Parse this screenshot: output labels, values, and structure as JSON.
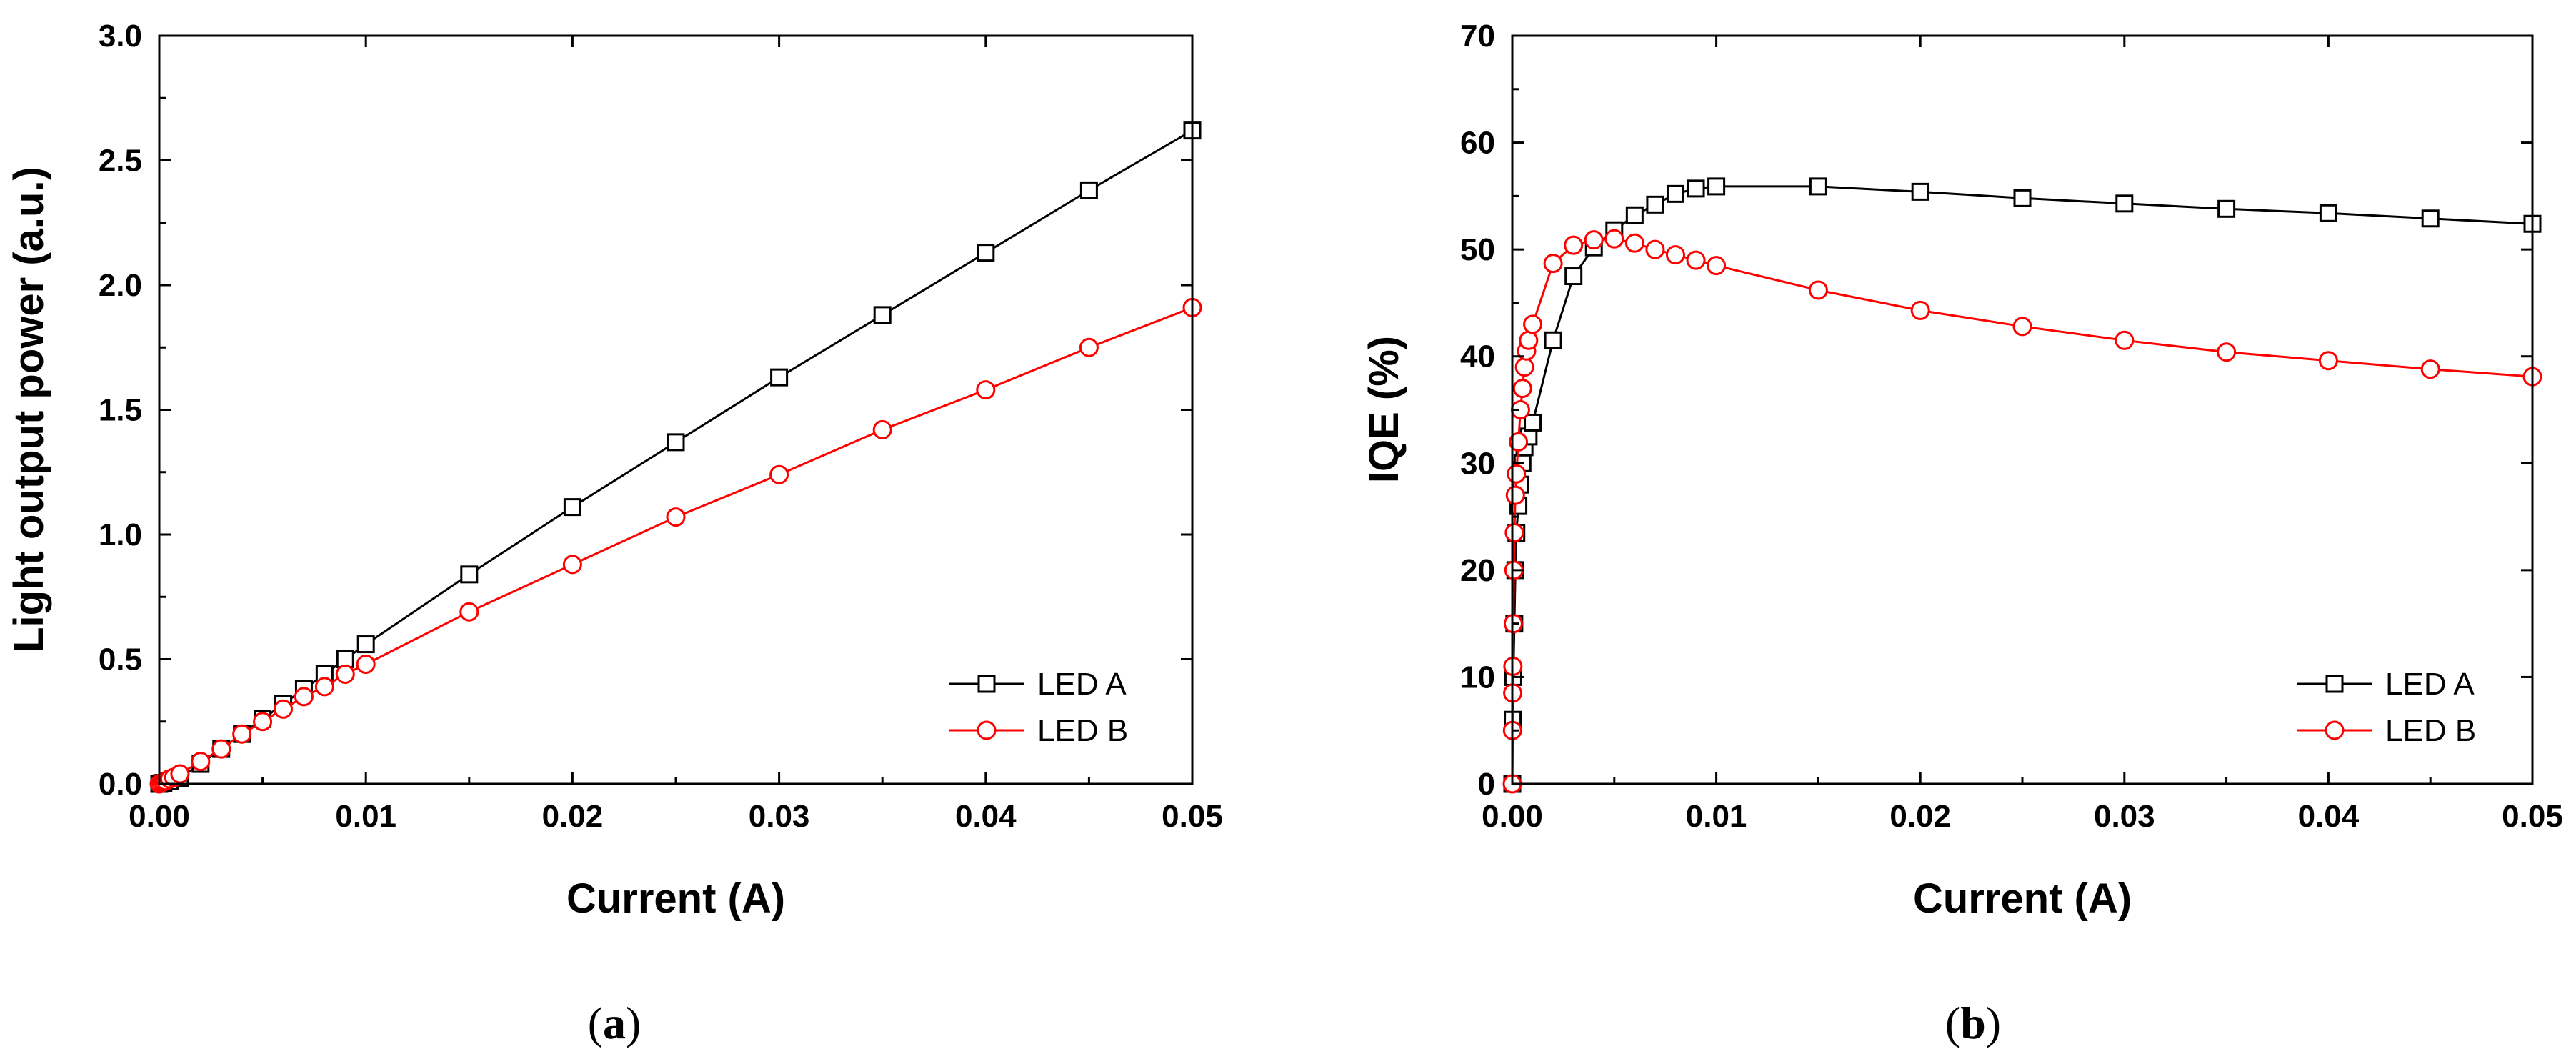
{
  "chart_data": [
    {
      "type": "line",
      "panel_label": {
        "open": "(",
        "letter": "a",
        "close": ")"
      },
      "title": "",
      "xlabel": "Current (A)",
      "ylabel": "Light output power (a.u.)",
      "xlim": [
        0,
        0.05
      ],
      "ylim": [
        0,
        3.0
      ],
      "xticks": [
        0.0,
        0.01,
        0.02,
        0.03,
        0.04,
        0.05
      ],
      "xtick_labels": [
        "0.00",
        "0.01",
        "0.02",
        "0.03",
        "0.04",
        "0.05"
      ],
      "yticks": [
        0,
        0.5,
        1.0,
        1.5,
        2.0,
        2.5,
        3.0
      ],
      "ytick_labels": [
        "0.0",
        "0.5",
        "1.0",
        "1.5",
        "2.0",
        "2.5",
        "3.0"
      ],
      "grid": false,
      "legend_position": "bottom-right",
      "series": [
        {
          "name": "LED A",
          "color": "#000000",
          "marker": "square",
          "x": [
            0,
            0.0001,
            0.0002,
            0.0005,
            0.001,
            0.002,
            0.003,
            0.004,
            0.005,
            0.006,
            0.007,
            0.008,
            0.009,
            0.01,
            0.015,
            0.02,
            0.025,
            0.03,
            0.035,
            0.04,
            0.045,
            0.05
          ],
          "y": [
            0,
            0.002,
            0.004,
            0.01,
            0.024,
            0.08,
            0.14,
            0.2,
            0.26,
            0.32,
            0.38,
            0.44,
            0.5,
            0.56,
            0.84,
            1.11,
            1.37,
            1.63,
            1.88,
            2.13,
            2.38,
            2.62
          ]
        },
        {
          "name": "LED B",
          "color": "#ff0000",
          "marker": "circle",
          "x": [
            0,
            0.0001,
            0.0002,
            0.0003,
            0.0005,
            0.0007,
            0.001,
            0.002,
            0.003,
            0.004,
            0.005,
            0.006,
            0.007,
            0.008,
            0.009,
            0.01,
            0.015,
            0.02,
            0.025,
            0.03,
            0.035,
            0.04,
            0.045,
            0.05
          ],
          "y": [
            0,
            0.004,
            0.008,
            0.012,
            0.02,
            0.026,
            0.04,
            0.09,
            0.14,
            0.2,
            0.25,
            0.3,
            0.35,
            0.39,
            0.44,
            0.48,
            0.69,
            0.88,
            1.07,
            1.24,
            1.42,
            1.58,
            1.75,
            1.91
          ]
        }
      ]
    },
    {
      "type": "line",
      "panel_label": {
        "open": "(",
        "letter": "b",
        "close": ")"
      },
      "title": "",
      "xlabel": "Current (A)",
      "ylabel": "IQE (%)",
      "xlim": [
        0,
        0.05
      ],
      "ylim": [
        0,
        70
      ],
      "xticks": [
        0.0,
        0.01,
        0.02,
        0.03,
        0.04,
        0.05
      ],
      "xtick_labels": [
        "0.00",
        "0.01",
        "0.02",
        "0.03",
        "0.04",
        "0.05"
      ],
      "yticks": [
        0,
        10,
        20,
        30,
        40,
        50,
        60,
        70
      ],
      "ytick_labels": [
        "0",
        "10",
        "20",
        "30",
        "40",
        "50",
        "60",
        "70"
      ],
      "grid": false,
      "legend_position": "bottom-right",
      "series": [
        {
          "name": "LED A",
          "color": "#000000",
          "marker": "square",
          "x": [
            0,
            2e-05,
            5e-05,
            0.0001,
            0.00015,
            0.0002,
            0.0003,
            0.0004,
            0.0005,
            0.0006,
            0.0008,
            0.001,
            0.002,
            0.003,
            0.004,
            0.005,
            0.006,
            0.007,
            0.008,
            0.009,
            0.01,
            0.015,
            0.02,
            0.025,
            0.03,
            0.035,
            0.04,
            0.045,
            0.05
          ],
          "y": [
            0,
            6,
            10,
            15,
            20,
            23.5,
            26,
            28,
            30,
            31.5,
            32.5,
            33.8,
            41.5,
            47.5,
            50.2,
            51.8,
            53.2,
            54.2,
            55.2,
            55.7,
            55.9,
            55.9,
            55.4,
            54.8,
            54.3,
            53.8,
            53.4,
            52.9,
            52.4
          ]
        },
        {
          "name": "LED B",
          "color": "#ff0000",
          "marker": "circle",
          "x": [
            0,
            1e-05,
            2e-05,
            3e-05,
            5e-05,
            8e-05,
            0.0001,
            0.00015,
            0.0002,
            0.0003,
            0.0004,
            0.0005,
            0.0006,
            0.0007,
            0.0008,
            0.001,
            0.002,
            0.003,
            0.004,
            0.005,
            0.006,
            0.007,
            0.008,
            0.009,
            0.01,
            0.015,
            0.02,
            0.025,
            0.03,
            0.035,
            0.04,
            0.045,
            0.05
          ],
          "y": [
            0,
            5,
            8.5,
            11,
            15,
            20,
            23.5,
            27,
            29,
            32,
            35,
            37,
            39,
            40.5,
            41.5,
            43,
            48.7,
            50.4,
            50.9,
            51,
            50.6,
            50,
            49.5,
            49,
            48.5,
            46.2,
            44.3,
            42.8,
            41.5,
            40.4,
            39.6,
            38.8,
            38.1
          ]
        }
      ]
    }
  ]
}
